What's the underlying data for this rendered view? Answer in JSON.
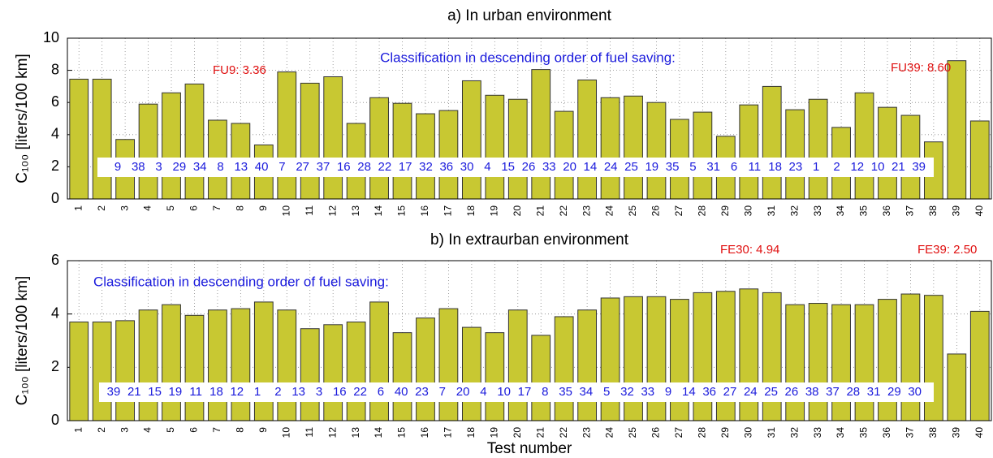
{
  "chart_data": [
    {
      "type": "bar",
      "title": "a) In urban environment",
      "ylabel": "C₁₀₀ [liters/100 km]",
      "categories": [
        "1",
        "2",
        "3",
        "4",
        "5",
        "6",
        "7",
        "8",
        "9",
        "10",
        "11",
        "12",
        "13",
        "14",
        "15",
        "16",
        "17",
        "18",
        "19",
        "20",
        "21",
        "22",
        "23",
        "24",
        "25",
        "26",
        "27",
        "28",
        "29",
        "30",
        "31",
        "32",
        "33",
        "34",
        "35",
        "36",
        "37",
        "38",
        "39",
        "40"
      ],
      "values": [
        7.45,
        7.45,
        3.7,
        5.9,
        6.6,
        7.15,
        4.9,
        4.7,
        3.36,
        7.9,
        7.2,
        7.6,
        4.7,
        6.3,
        5.95,
        5.3,
        5.5,
        7.35,
        6.45,
        6.2,
        8.05,
        5.45,
        7.4,
        6.3,
        6.4,
        6.0,
        4.95,
        5.4,
        3.9,
        5.85,
        7.0,
        5.55,
        6.2,
        4.45,
        6.6,
        5.7,
        5.2,
        3.55,
        8.6,
        4.85
      ],
      "color": "#c8c832",
      "ylim": [
        0,
        10
      ],
      "yticks": [
        0,
        2,
        4,
        6,
        8,
        10
      ],
      "grid": true,
      "ranking_title": "Classification in descending order of fuel saving:",
      "ranking": [
        9,
        38,
        3,
        29,
        34,
        8,
        13,
        40,
        7,
        27,
        37,
        16,
        28,
        22,
        17,
        32,
        36,
        30,
        4,
        15,
        26,
        33,
        20,
        14,
        24,
        25,
        19,
        35,
        5,
        31,
        6,
        11,
        18,
        23,
        1,
        2,
        12,
        10,
        21,
        39
      ],
      "annotations": [
        "FU9: 3.36",
        "FU39: 8.60"
      ]
    },
    {
      "type": "bar",
      "title": "b) In extraurban environment",
      "ylabel": "C₁₀₀ [liters/100 km]",
      "xlabel": "Test number",
      "categories": [
        "1",
        "2",
        "3",
        "4",
        "5",
        "6",
        "7",
        "8",
        "9",
        "10",
        "11",
        "12",
        "13",
        "14",
        "15",
        "16",
        "17",
        "18",
        "19",
        "20",
        "21",
        "22",
        "23",
        "24",
        "25",
        "26",
        "27",
        "28",
        "29",
        "30",
        "31",
        "32",
        "33",
        "34",
        "35",
        "36",
        "37",
        "38",
        "39",
        "40"
      ],
      "values": [
        3.7,
        3.7,
        3.75,
        4.15,
        4.35,
        3.95,
        4.15,
        4.2,
        4.45,
        4.15,
        3.45,
        3.6,
        3.7,
        4.45,
        3.3,
        3.85,
        4.2,
        3.5,
        3.3,
        4.15,
        3.2,
        3.9,
        4.15,
        4.6,
        4.65,
        4.65,
        4.55,
        4.8,
        4.85,
        4.94,
        4.8,
        4.35,
        4.4,
        4.35,
        4.35,
        4.55,
        4.75,
        4.7,
        2.5,
        4.1
      ],
      "color": "#c8c832",
      "ylim": [
        0,
        6
      ],
      "yticks": [
        0,
        2,
        4,
        6
      ],
      "grid": true,
      "ranking_title": "Classification in descending order of fuel saving:",
      "ranking": [
        39,
        21,
        15,
        19,
        11,
        18,
        12,
        1,
        2,
        13,
        3,
        16,
        22,
        6,
        40,
        23,
        7,
        20,
        4,
        10,
        17,
        8,
        35,
        34,
        5,
        32,
        33,
        9,
        14,
        36,
        27,
        24,
        25,
        26,
        38,
        37,
        28,
        31,
        29,
        30
      ],
      "annotations": [
        "FE30: 4.94",
        "FE39: 2.50"
      ]
    }
  ]
}
